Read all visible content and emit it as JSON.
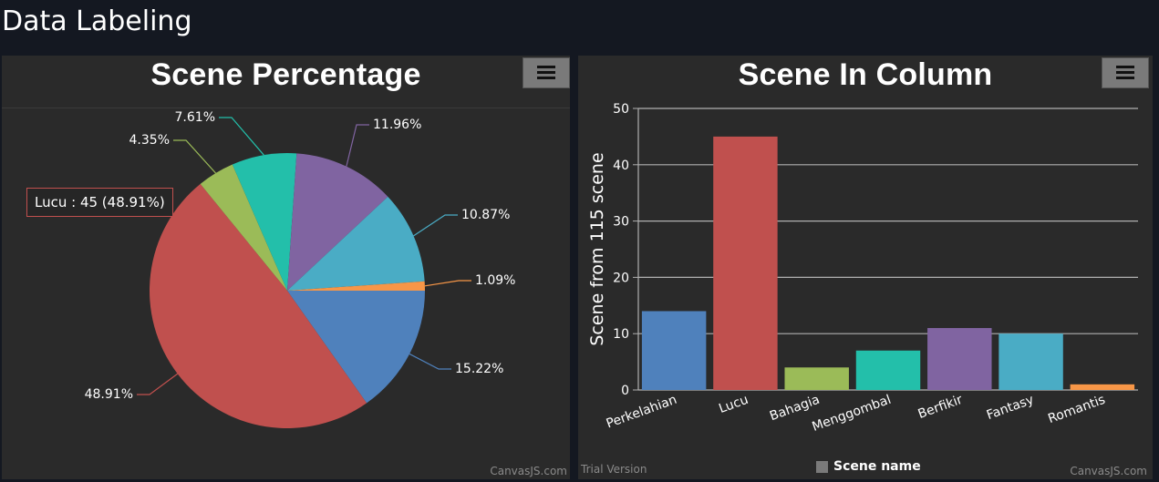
{
  "page": {
    "title": "Data Labeling"
  },
  "menu_icon": "hamburger-menu-icon",
  "credits": {
    "canvasjs": "CanvasJS.com",
    "trial": "Trial Version"
  },
  "pie": {
    "tooltip": "Lucu : 45 (48.91%)"
  },
  "chart_data": [
    {
      "type": "pie",
      "title": "Scene Percentage",
      "slices": [
        {
          "label": "Perkelahian",
          "value": 14,
          "percent_label": "15.22%",
          "color": "#4f81bc"
        },
        {
          "label": "Lucu",
          "value": 45,
          "percent_label": "48.91%",
          "color": "#c0504e"
        },
        {
          "label": "Bahagia",
          "value": 4,
          "percent_label": "4.35%",
          "color": "#9bbb58"
        },
        {
          "label": "Menggombal",
          "value": 7,
          "percent_label": "7.61%",
          "color": "#23bfaa"
        },
        {
          "label": "Berfikir",
          "value": 11,
          "percent_label": "11.96%",
          "color": "#8064a1"
        },
        {
          "label": "Fantasy",
          "value": 10,
          "percent_label": "10.87%",
          "color": "#4aacc5"
        },
        {
          "label": "Romantis",
          "value": 1,
          "percent_label": "1.09%",
          "color": "#f79647"
        }
      ]
    },
    {
      "type": "bar",
      "title": "Scene In Column",
      "categories": [
        "Perkelahian",
        "Lucu",
        "Bahagia",
        "Menggombal",
        "Berfikir",
        "Fantasy",
        "Romantis"
      ],
      "values": [
        14,
        45,
        4,
        7,
        11,
        10,
        1
      ],
      "colors": [
        "#4f81bc",
        "#c0504e",
        "#9bbb58",
        "#23bfaa",
        "#8064a1",
        "#4aacc5",
        "#f79647"
      ],
      "ylabel": "Scene from 115 scene",
      "ylim": [
        0,
        50
      ],
      "yticks": [
        0,
        10,
        20,
        30,
        40,
        50
      ],
      "legend": "Scene name",
      "legend_placement": "bottom-center",
      "grid": true
    }
  ]
}
